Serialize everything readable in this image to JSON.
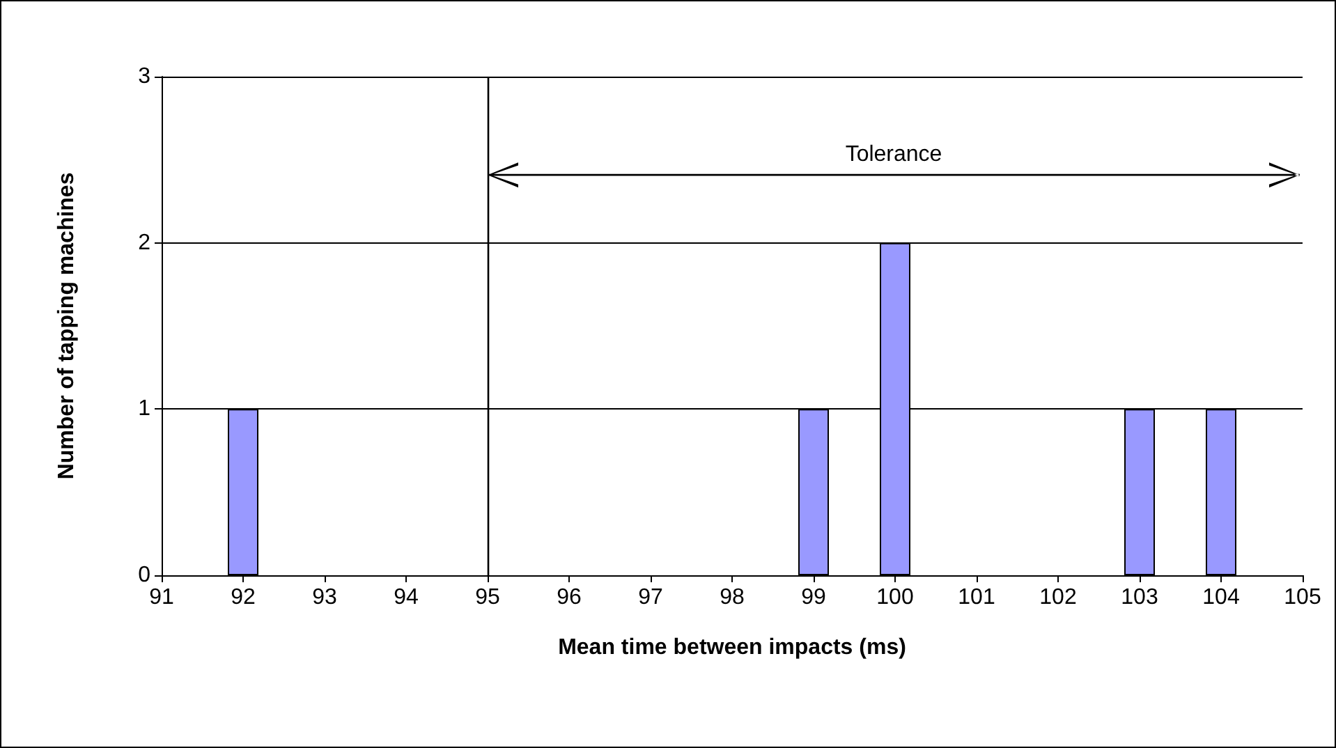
{
  "chart_data": {
    "type": "bar",
    "xlabel": "Mean time between impacts (ms)",
    "ylabel": "Number of tapping machines",
    "x": [
      92,
      99,
      100,
      103,
      104
    ],
    "values": [
      1,
      1,
      2,
      1,
      1
    ],
    "color": "#9999ff",
    "xlim": [
      91,
      105
    ],
    "xticks": [
      91,
      92,
      93,
      94,
      95,
      96,
      97,
      98,
      99,
      100,
      101,
      102,
      103,
      104,
      105
    ],
    "ylim": [
      0,
      3
    ],
    "yticks": [
      0,
      1,
      2,
      3
    ],
    "grid": "y",
    "ref_lines": [
      {
        "axis": "x",
        "value": 95,
        "color": "#000000"
      }
    ],
    "annotations": [
      "Tolerance"
    ]
  }
}
